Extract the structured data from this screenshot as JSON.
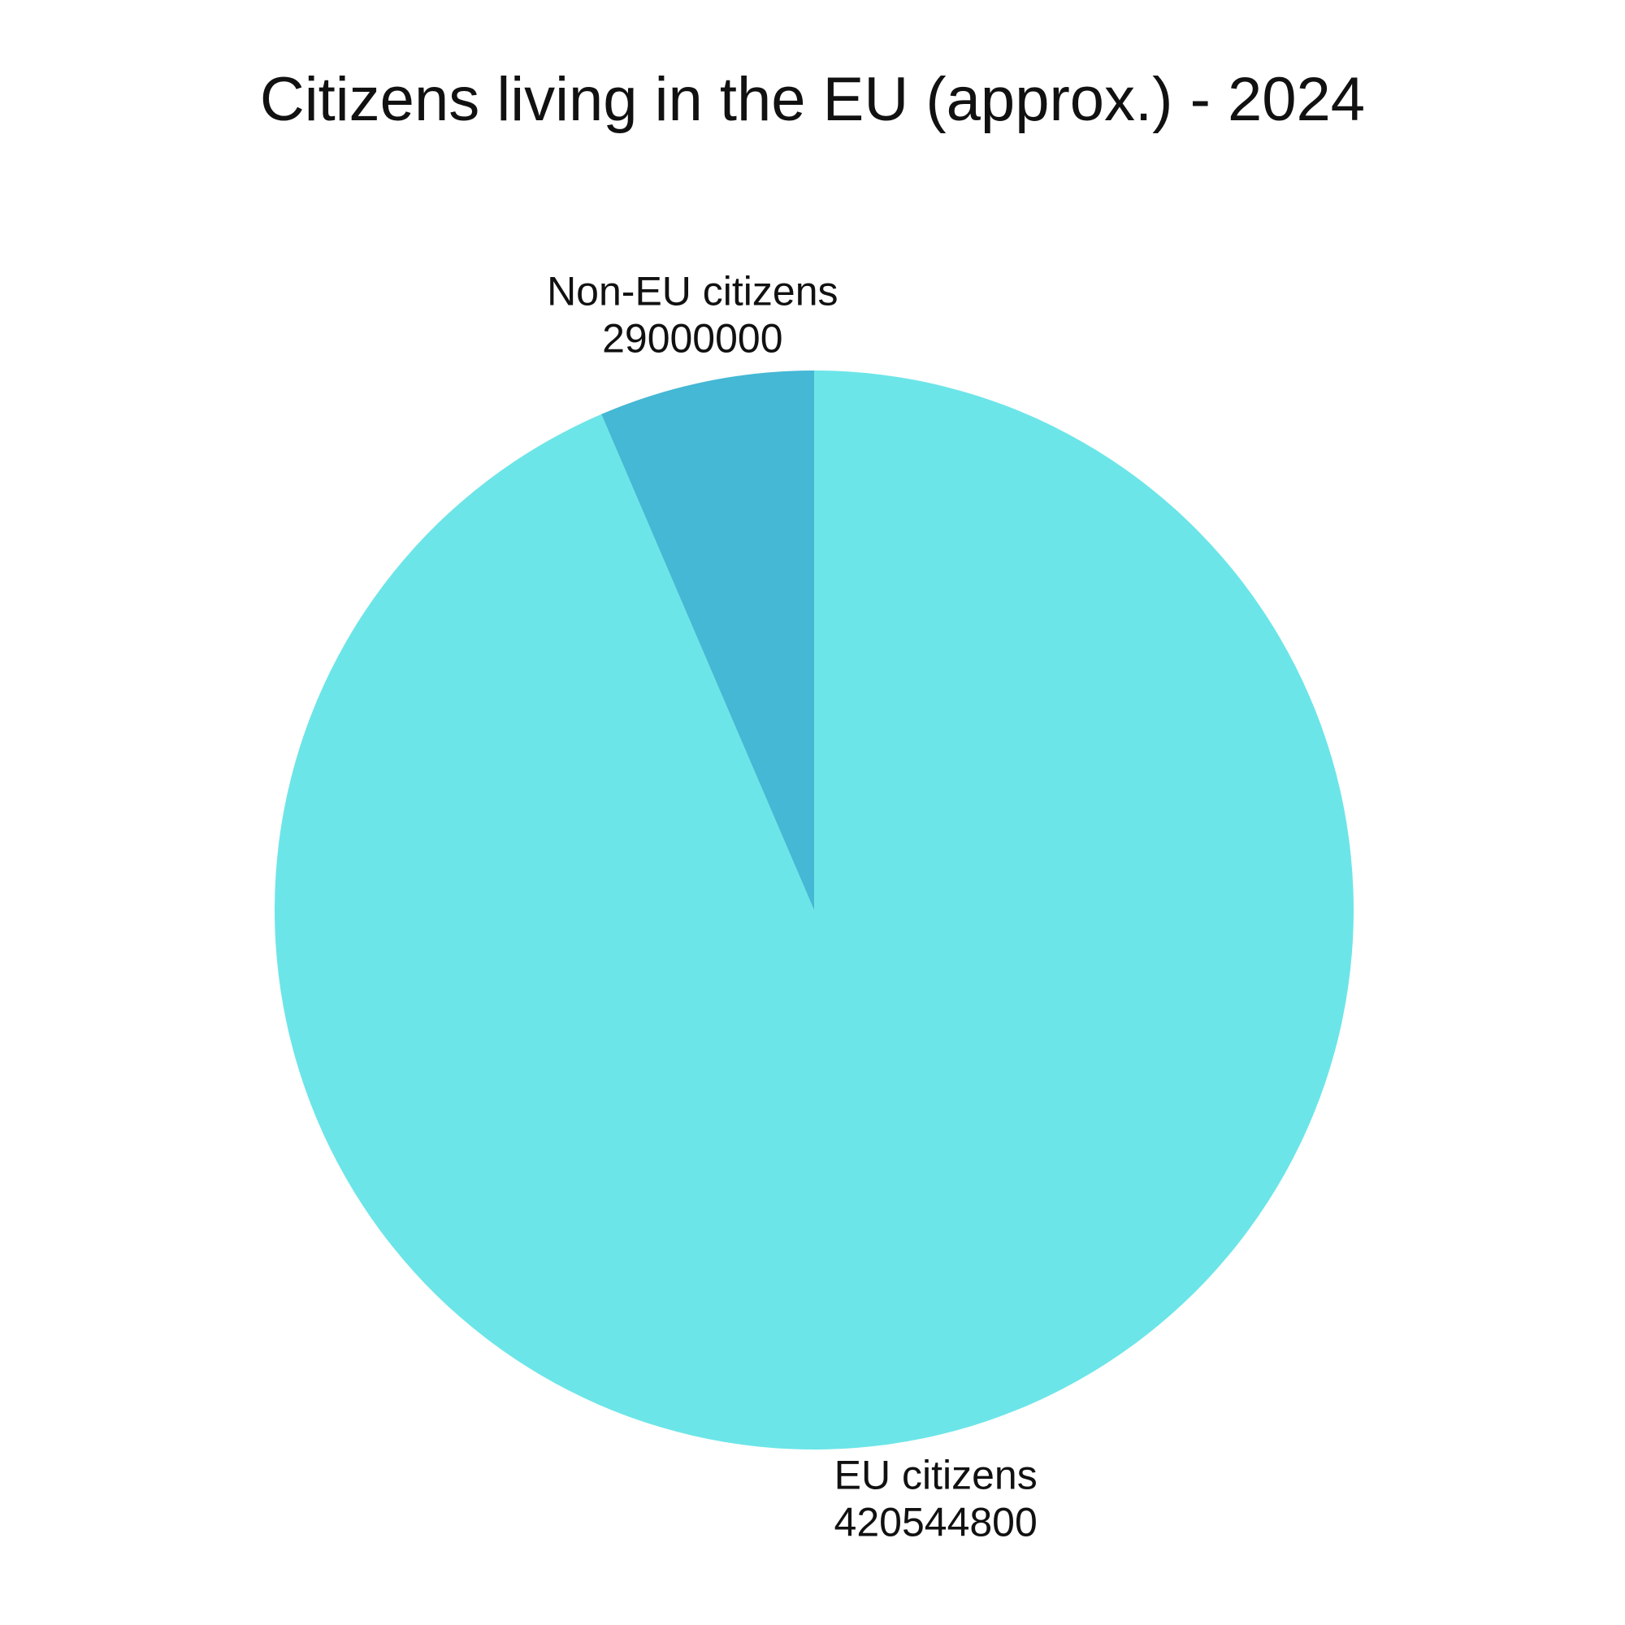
{
  "chart_data": {
    "type": "pie",
    "title": "Citizens living in the EU (approx.) - 2024",
    "categories": [
      "EU citizens",
      "Non-EU citizens"
    ],
    "values": [
      420544800,
      29000000
    ],
    "colors": [
      "#6ce5e8",
      "#44b8d4"
    ]
  }
}
